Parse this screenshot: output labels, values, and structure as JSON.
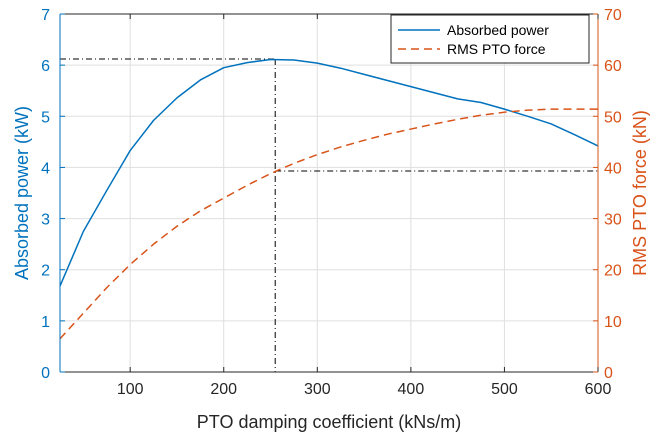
{
  "chart_data": {
    "type": "line",
    "title": "",
    "xlabel": "PTO damping coefficient (kNs/m)",
    "ylabel_left": "Absorbed power (kW)",
    "ylabel_right": "RMS PTO force (kN)",
    "xlim": [
      25,
      600
    ],
    "ylim_left": [
      0,
      7
    ],
    "ylim_right": [
      0,
      70
    ],
    "x_ticks": [
      100,
      200,
      300,
      400,
      500,
      600
    ],
    "y_ticks_left": [
      0,
      1,
      2,
      3,
      4,
      5,
      6,
      7
    ],
    "y_ticks_right": [
      0,
      10,
      20,
      30,
      40,
      50,
      60,
      70
    ],
    "grid": true,
    "legend_position": "top-right",
    "colors": {
      "left_axis": "#0072BD",
      "right_axis": "#D95319",
      "guide": "#000000"
    },
    "series": [
      {
        "name": "Absorbed power",
        "axis": "left",
        "style": "solid",
        "color": "#0072BD",
        "x": [
          25,
          50,
          75,
          100,
          125,
          150,
          175,
          200,
          225,
          250,
          275,
          300,
          325,
          350,
          375,
          400,
          425,
          450,
          475,
          500,
          525,
          550,
          575,
          600
        ],
        "y": [
          1.68,
          2.75,
          3.55,
          4.33,
          4.92,
          5.36,
          5.71,
          5.95,
          6.05,
          6.11,
          6.1,
          6.04,
          5.94,
          5.82,
          5.7,
          5.58,
          5.46,
          5.34,
          5.27,
          5.14,
          5.0,
          4.85,
          4.64,
          4.42
        ]
      },
      {
        "name": "RMS PTO force",
        "axis": "right",
        "style": "dashed",
        "color": "#D95319",
        "x": [
          25,
          50,
          75,
          100,
          125,
          150,
          175,
          200,
          225,
          250,
          275,
          300,
          325,
          350,
          375,
          400,
          425,
          450,
          475,
          500,
          525,
          550,
          575,
          600
        ],
        "y": [
          6.5,
          11.5,
          16.5,
          21.0,
          25.0,
          28.5,
          31.5,
          34.0,
          36.5,
          38.8,
          40.8,
          42.5,
          44.0,
          45.3,
          46.5,
          47.5,
          48.5,
          49.4,
          50.2,
          50.8,
          51.2,
          51.4,
          51.4,
          51.4
        ]
      }
    ],
    "annotations": [
      {
        "type": "guide",
        "description": "peak power marker",
        "x": 255,
        "y_left": 6.12
      },
      {
        "type": "guide",
        "description": "force at peak power",
        "x": 255,
        "y_right": 39.3
      }
    ]
  }
}
